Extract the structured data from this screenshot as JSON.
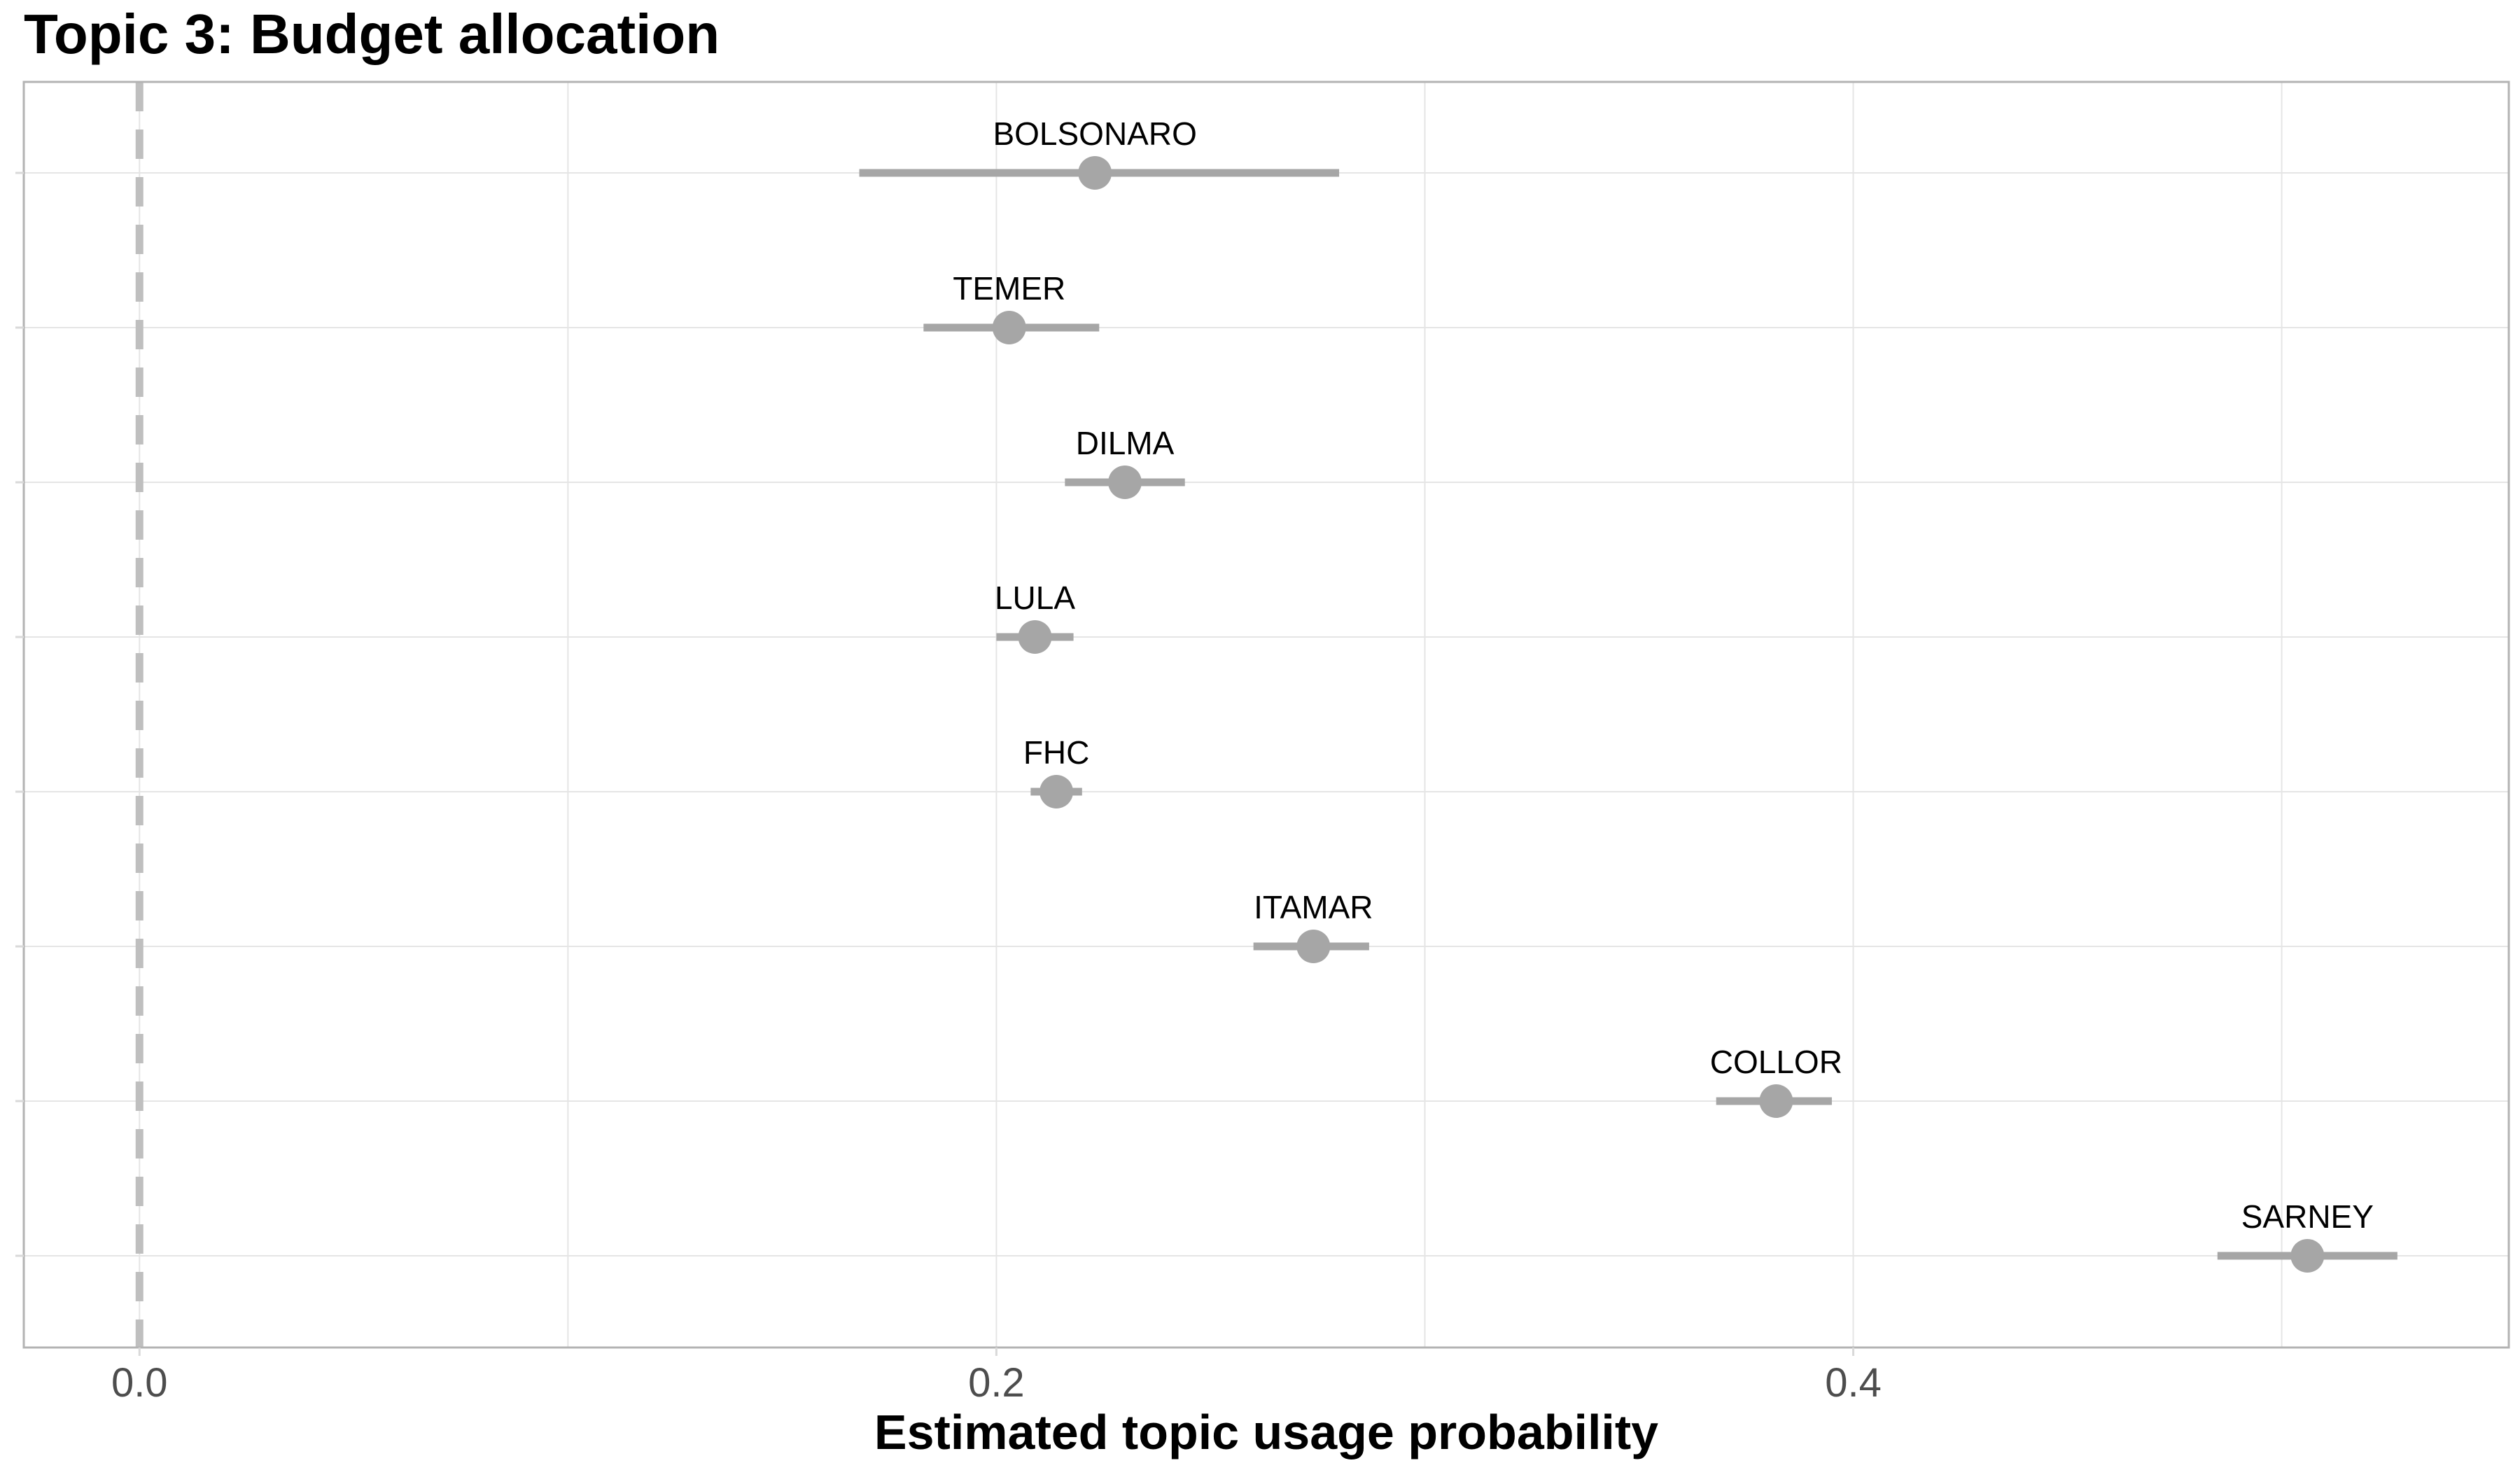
{
  "chart_data": {
    "type": "scatter",
    "title": "Topic 3: Budget allocation",
    "xlabel": "Estimated topic usage probability",
    "ylabel": "",
    "xlim": [
      -0.027,
      0.553
    ],
    "x_ticks": [
      0.0,
      0.2,
      0.4
    ],
    "x_tick_labels": [
      "0.0",
      "0.2",
      "0.4"
    ],
    "reference_line_x": 0.0,
    "grid": true,
    "legend": "none",
    "colors": {
      "point": "#a6a6a6",
      "errorbar": "#a6a6a6",
      "reference_line": "#bfbfbf",
      "grid": "#e5e5e5",
      "panel_border": "#b3b3b3"
    },
    "points": [
      {
        "label": "BOLSONARO",
        "estimate": 0.223,
        "lower": 0.168,
        "upper": 0.28
      },
      {
        "label": "TEMER",
        "estimate": 0.203,
        "lower": 0.183,
        "upper": 0.224
      },
      {
        "label": "DILMA",
        "estimate": 0.23,
        "lower": 0.216,
        "upper": 0.244
      },
      {
        "label": "LULA",
        "estimate": 0.209,
        "lower": 0.2,
        "upper": 0.218
      },
      {
        "label": "FHC",
        "estimate": 0.214,
        "lower": 0.208,
        "upper": 0.22
      },
      {
        "label": "ITAMAR",
        "estimate": 0.274,
        "lower": 0.26,
        "upper": 0.287
      },
      {
        "label": "COLLOR",
        "estimate": 0.382,
        "lower": 0.368,
        "upper": 0.395
      },
      {
        "label": "SARNEY",
        "estimate": 0.506,
        "lower": 0.485,
        "upper": 0.527
      }
    ]
  }
}
